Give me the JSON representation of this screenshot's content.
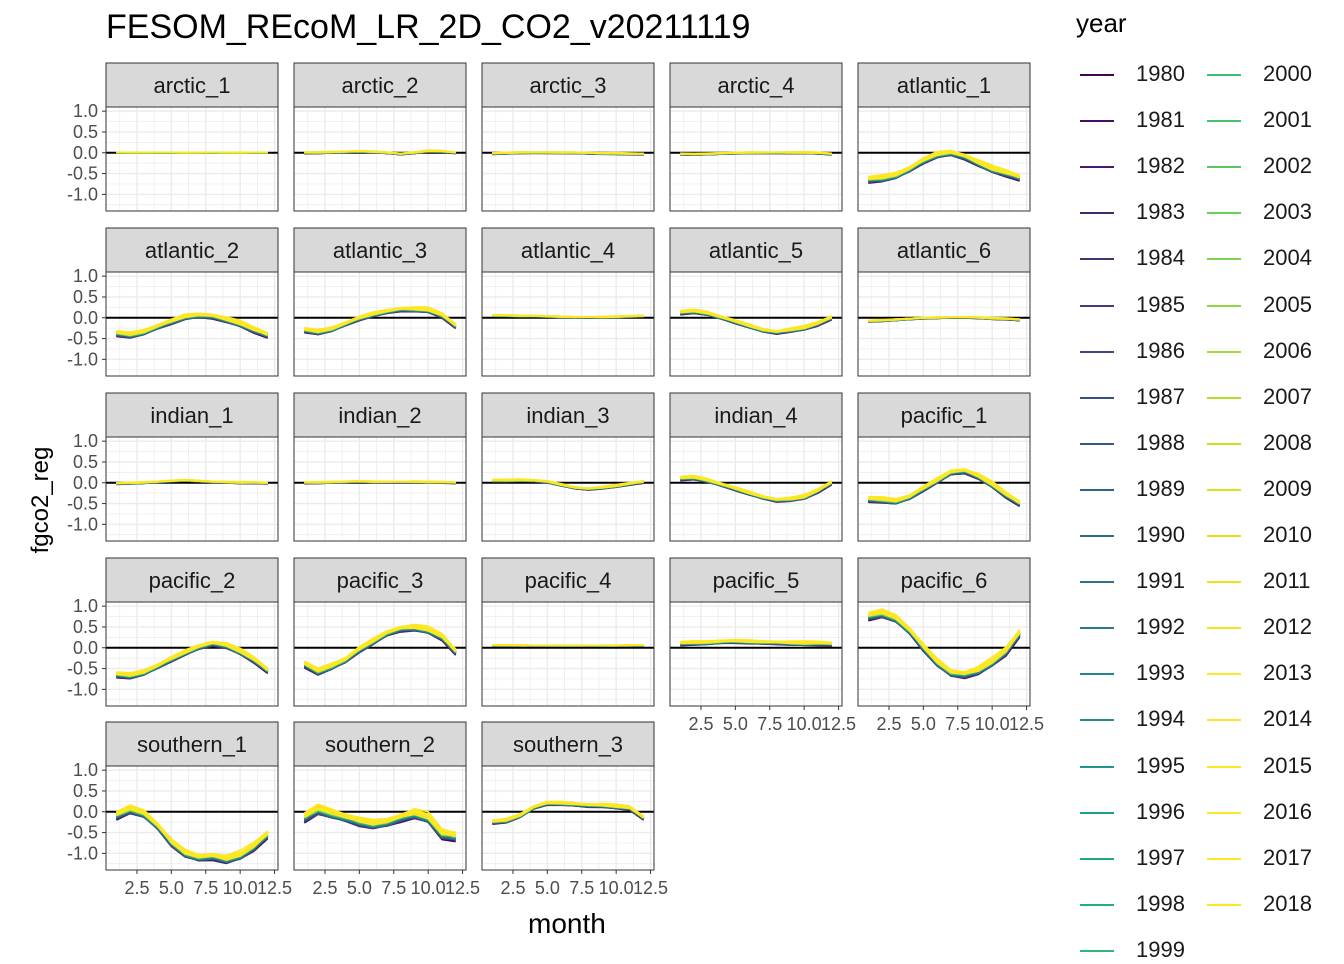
{
  "title": "FESOM_REcoM_LR_2D_CO2_v20211119",
  "xlabel": "month",
  "ylabel": "fgco2_reg",
  "legend_title": "year",
  "colors": {
    "strip_bg": "#d9d9d9",
    "grid": "#ebebeb",
    "zero_line": "#000000",
    "panel_border": "#333333"
  },
  "chart_data": {
    "type": "line",
    "facet_wrap": true,
    "x_range": [
      1,
      12
    ],
    "x_ticks": [
      2.5,
      5.0,
      7.5,
      10.0,
      12.5
    ],
    "x_tick_labels": [
      "2.5",
      "5.0",
      "7.5",
      "10.0",
      "12.5"
    ],
    "y_range": [
      -1.4,
      1.1
    ],
    "y_ticks": [
      1.0,
      0.5,
      0.0,
      -0.5,
      -1.0
    ],
    "y_tick_labels": [
      "1.0",
      "0.5",
      "0.0",
      "-0.5",
      "-1.0"
    ],
    "hline": 0,
    "years": [
      1980,
      1981,
      1982,
      1983,
      1984,
      1985,
      1986,
      1987,
      1988,
      1989,
      1990,
      1991,
      1992,
      1993,
      1994,
      1995,
      1996,
      1997,
      1998,
      1999,
      2000,
      2001,
      2002,
      2003,
      2004,
      2005,
      2006,
      2007,
      2008,
      2009,
      2010,
      2011,
      2012,
      2013,
      2014,
      2015,
      2016,
      2017,
      2018
    ],
    "year_colors": [
      "#440154",
      "#450e5e",
      "#471b67",
      "#46276e",
      "#443275",
      "#423d7b",
      "#3e4780",
      "#3a5083",
      "#365a86",
      "#326388",
      "#2f6b8a",
      "#2b748c",
      "#287c8d",
      "#25858e",
      "#228d8d",
      "#20968d",
      "#1f9e8a",
      "#21a685",
      "#27ae80",
      "#31b579",
      "#3dbc74",
      "#4ac36b",
      "#59c864",
      "#6ace5a",
      "#7dd24f",
      "#8fd744",
      "#a1da39",
      "#b5de2b",
      "#c8e020",
      "#d8e219",
      "#e1e318",
      "#e8e51a",
      "#f0e620",
      "#fde725",
      "#fde725",
      "#fde725",
      "#fde725",
      "#fde725",
      "#fde725"
    ],
    "panels": [
      {
        "name": "arctic_1",
        "mean": [
          0,
          0,
          0,
          0,
          0,
          0,
          0,
          0,
          0,
          0,
          0,
          0
        ],
        "spread": 0.01
      },
      {
        "name": "arctic_2",
        "mean": [
          0,
          0,
          0.01,
          0.02,
          0.03,
          0.02,
          0,
          -0.03,
          0,
          0.04,
          0.03,
          0
        ],
        "spread": 0.02
      },
      {
        "name": "arctic_3",
        "mean": [
          -0.02,
          -0.01,
          0,
          0,
          0,
          0,
          0,
          -0.01,
          -0.02,
          -0.02,
          -0.03,
          -0.03
        ],
        "spread": 0.02
      },
      {
        "name": "arctic_4",
        "mean": [
          -0.03,
          -0.04,
          -0.03,
          -0.02,
          -0.01,
          0,
          0,
          0,
          0,
          0,
          -0.01,
          -0.03
        ],
        "spread": 0.02
      },
      {
        "name": "atlantic_1",
        "mean": [
          -0.65,
          -0.62,
          -0.55,
          -0.4,
          -0.2,
          -0.05,
          0,
          -0.1,
          -0.25,
          -0.4,
          -0.5,
          -0.6
        ],
        "spread": 0.08
      },
      {
        "name": "atlantic_2",
        "mean": [
          -0.38,
          -0.42,
          -0.35,
          -0.22,
          -0.1,
          0.02,
          0.06,
          0.03,
          -0.05,
          -0.15,
          -0.3,
          -0.42
        ],
        "spread": 0.07
      },
      {
        "name": "atlantic_3",
        "mean": [
          -0.3,
          -0.35,
          -0.28,
          -0.15,
          -0.02,
          0.08,
          0.15,
          0.2,
          0.2,
          0.18,
          0.05,
          -0.2
        ],
        "spread": 0.06
      },
      {
        "name": "atlantic_4",
        "mean": [
          0.05,
          0.05,
          0.04,
          0.04,
          0.03,
          0.02,
          0.01,
          0.01,
          0.01,
          0.02,
          0.03,
          0.04
        ],
        "spread": 0.02
      },
      {
        "name": "atlantic_5",
        "mean": [
          0.12,
          0.15,
          0.1,
          0,
          -0.1,
          -0.2,
          -0.3,
          -0.35,
          -0.3,
          -0.25,
          -0.15,
          0
        ],
        "spread": 0.05
      },
      {
        "name": "atlantic_6",
        "mean": [
          -0.08,
          -0.07,
          -0.05,
          -0.03,
          -0.01,
          0,
          0.01,
          0.01,
          0,
          -0.02,
          -0.03,
          -0.05
        ],
        "spread": 0.02
      },
      {
        "name": "indian_1",
        "mean": [
          -0.02,
          -0.01,
          0,
          0.02,
          0.04,
          0.06,
          0.04,
          0.02,
          0.01,
          0,
          0,
          -0.01
        ],
        "spread": 0.02
      },
      {
        "name": "indian_2",
        "mean": [
          0,
          0,
          0.01,
          0.02,
          0.03,
          0.02,
          0.02,
          0.02,
          0.02,
          0.01,
          0.01,
          0
        ],
        "spread": 0.02
      },
      {
        "name": "indian_3",
        "mean": [
          0.05,
          0.05,
          0.06,
          0.05,
          0.02,
          -0.05,
          -0.12,
          -0.15,
          -0.12,
          -0.08,
          -0.03,
          0.02
        ],
        "spread": 0.03
      },
      {
        "name": "indian_4",
        "mean": [
          0.1,
          0.12,
          0.05,
          -0.05,
          -0.15,
          -0.25,
          -0.35,
          -0.42,
          -0.4,
          -0.35,
          -0.2,
          0
        ],
        "spread": 0.05
      },
      {
        "name": "pacific_1",
        "mean": [
          -0.4,
          -0.42,
          -0.45,
          -0.35,
          -0.15,
          0.05,
          0.25,
          0.28,
          0.15,
          -0.05,
          -0.3,
          -0.5
        ],
        "spread": 0.07
      },
      {
        "name": "pacific_2",
        "mean": [
          -0.65,
          -0.68,
          -0.6,
          -0.45,
          -0.28,
          -0.12,
          0.02,
          0.1,
          0.05,
          -0.1,
          -0.3,
          -0.55
        ],
        "spread": 0.07
      },
      {
        "name": "pacific_3",
        "mean": [
          -0.4,
          -0.58,
          -0.45,
          -0.3,
          -0.05,
          0.15,
          0.35,
          0.45,
          0.48,
          0.42,
          0.25,
          -0.1
        ],
        "spread": 0.08
      },
      {
        "name": "pacific_4",
        "mean": [
          0.06,
          0.06,
          0.06,
          0.05,
          0.05,
          0.05,
          0.05,
          0.05,
          0.05,
          0.05,
          0.06,
          0.06
        ],
        "spread": 0.01
      },
      {
        "name": "pacific_5",
        "mean": [
          0.1,
          0.11,
          0.12,
          0.14,
          0.15,
          0.14,
          0.13,
          0.12,
          0.11,
          0.1,
          0.1,
          0.09
        ],
        "spread": 0.05
      },
      {
        "name": "pacific_6",
        "mean": [
          0.75,
          0.82,
          0.7,
          0.4,
          0.0,
          -0.35,
          -0.6,
          -0.65,
          -0.55,
          -0.35,
          -0.1,
          0.35
        ],
        "spread": 0.1
      },
      {
        "name": "southern_1",
        "mean": [
          -0.1,
          0.05,
          -0.05,
          -0.35,
          -0.75,
          -1.0,
          -1.1,
          -1.08,
          -1.15,
          -1.05,
          -0.85,
          -0.55
        ],
        "spread": 0.1
      },
      {
        "name": "southern_2",
        "mean": [
          -0.15,
          0.05,
          -0.05,
          -0.15,
          -0.25,
          -0.3,
          -0.25,
          -0.15,
          -0.05,
          -0.15,
          -0.55,
          -0.6
        ],
        "spread": 0.12
      },
      {
        "name": "southern_3",
        "mean": [
          -0.25,
          -0.22,
          -0.1,
          0.1,
          0.2,
          0.2,
          0.18,
          0.15,
          0.15,
          0.12,
          0.08,
          -0.15
        ],
        "spread": 0.05
      }
    ]
  }
}
